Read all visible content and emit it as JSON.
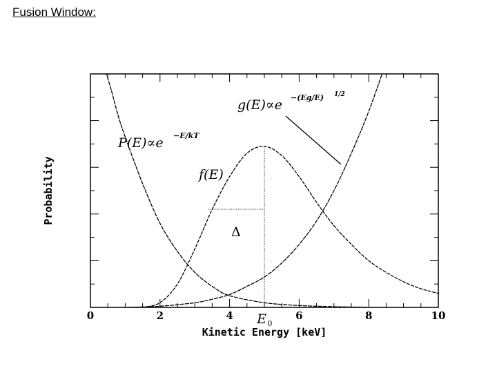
{
  "slide": {
    "title": "Fusion Window:"
  },
  "chart_data": {
    "type": "line",
    "title": "",
    "xlabel": "Kinetic Energy [keV]",
    "ylabel": "Probability",
    "xlim": [
      0,
      10
    ],
    "ylim": [
      0,
      1
    ],
    "x_ticks": [
      "0",
      "2",
      "4",
      "6",
      "8",
      "10"
    ],
    "special_tick": {
      "x": 5.0,
      "label": "E",
      "sub": "0"
    },
    "series": [
      {
        "name": "P(E)",
        "label_main": "P(E)∝e",
        "label_sup": "−E/kT",
        "x": [
          0.4,
          0.6,
          0.8,
          1.0,
          1.5,
          2.0,
          2.5,
          3.0,
          3.5,
          4.0,
          5.0,
          6.0,
          7.0,
          8.0
        ],
        "y": [
          1.03,
          0.93,
          0.82,
          0.73,
          0.53,
          0.36,
          0.24,
          0.15,
          0.09,
          0.05,
          0.02,
          0.008,
          0.003,
          0.0
        ]
      },
      {
        "name": "g(E)",
        "label_main": "g(E)∝e",
        "label_sup": "−(Eg/E)",
        "label_sup2": "1/2",
        "x": [
          1.0,
          2.0,
          3.0,
          3.5,
          4.0,
          4.5,
          5.0,
          5.5,
          6.0,
          6.5,
          7.0,
          7.5,
          8.0,
          8.5
        ],
        "y": [
          0.0,
          0.005,
          0.02,
          0.035,
          0.055,
          0.09,
          0.13,
          0.19,
          0.27,
          0.37,
          0.5,
          0.66,
          0.84,
          1.05
        ]
      },
      {
        "name": "f(E)",
        "label_main": "f(E)",
        "x": [
          1.5,
          2.0,
          2.5,
          3.0,
          3.5,
          4.0,
          4.5,
          5.0,
          5.5,
          6.0,
          6.5,
          7.0,
          7.5,
          8.0,
          8.5,
          9.0,
          9.5,
          10.0
        ],
        "y": [
          0.0,
          0.02,
          0.1,
          0.25,
          0.42,
          0.56,
          0.66,
          0.69,
          0.65,
          0.56,
          0.45,
          0.35,
          0.27,
          0.2,
          0.15,
          0.11,
          0.08,
          0.06
        ]
      }
    ],
    "annotations": {
      "delta_label": "Δ",
      "peak_x": 5.0,
      "peak_y": 0.69,
      "half_width_left_x": 3.4,
      "half_width_y": 0.42
    }
  }
}
